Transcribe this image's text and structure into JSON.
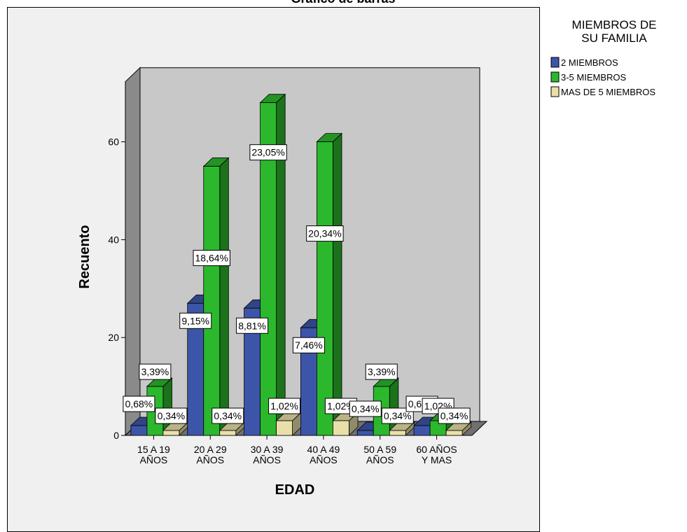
{
  "chart_data": {
    "type": "bar",
    "title": "Gráfico de barras",
    "xlabel": "EDAD",
    "ylabel": "Recuento",
    "ylim": [
      0,
      70
    ],
    "yticks": [
      0,
      20,
      40,
      60
    ],
    "categories": [
      [
        "15 A 19",
        "AÑOS"
      ],
      [
        "20 A 29",
        "AÑOS"
      ],
      [
        "30 A 39",
        "AÑOS"
      ],
      [
        "40 A 49",
        "AÑOS"
      ],
      [
        "50 A 59",
        "AÑOS"
      ],
      [
        "60 AÑOS",
        "Y MAS"
      ]
    ],
    "series": [
      {
        "name": "2 MIEMBROS",
        "color": "#3d55a8",
        "values": [
          2,
          27,
          26,
          22,
          1,
          2
        ],
        "labels": [
          "0,68%",
          "9,15%",
          "8,81%",
          "7,46%",
          "0,34%",
          "0,68%"
        ]
      },
      {
        "name": "3-5 MIEMBROS",
        "color": "#2cb82c",
        "values": [
          10,
          55,
          68,
          60,
          10,
          3
        ],
        "labels": [
          "3,39%",
          "18,64%",
          "23,05%",
          "20,34%",
          "3,39%",
          "1,02%"
        ]
      },
      {
        "name": "MAS DE 5 MIEMBROS",
        "color": "#e8e0a8",
        "values": [
          1,
          1,
          3,
          3,
          1,
          1
        ],
        "labels": [
          "0,34%",
          "0,34%",
          "1,02%",
          "1,02%",
          "0,34%",
          "0,34%"
        ]
      }
    ],
    "legend": {
      "title_lines": [
        "MIEMBROS DE",
        "SU FAMILIA"
      ],
      "placement": "right"
    },
    "grid": false
  }
}
